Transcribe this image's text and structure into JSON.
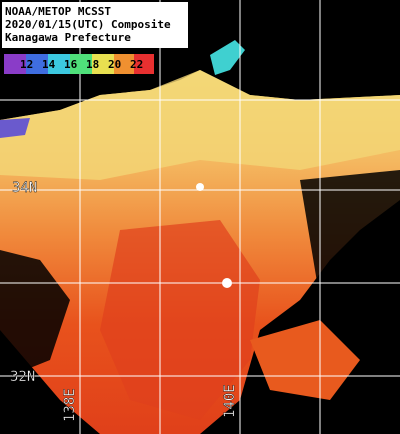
{
  "header": {
    "lines": [
      "NOAA/METOP MCSST",
      "2020/01/15(UTC) Composite",
      "Kanagawa Prefecture"
    ]
  },
  "colorbar": {
    "labels": [
      "12",
      "14",
      "16",
      "18",
      "20",
      "22"
    ]
  },
  "grid": {
    "latitude": [
      "34N",
      "32N"
    ],
    "longitude": [
      "138E",
      "140E"
    ]
  }
}
